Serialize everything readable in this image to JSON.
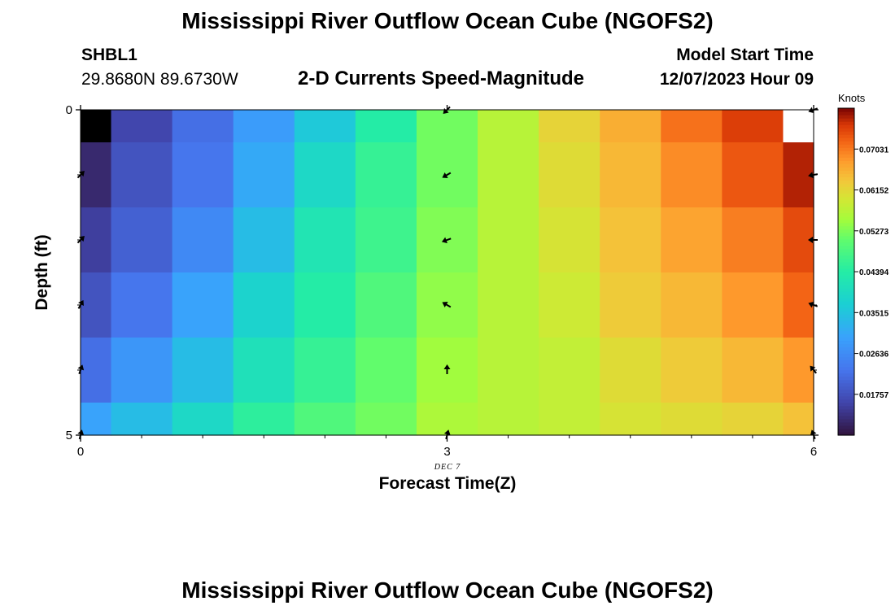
{
  "header": {
    "title": "Mississippi River Outflow Ocean Cube (NGOFS2)",
    "station": "SHBL1",
    "coords": "29.8680N  89.6730W",
    "subtitle": "2-D Currents Speed-Magnitude",
    "model_start_label": "Model Start Time",
    "model_start_value": "12/07/2023 Hour 09"
  },
  "footer": {
    "title": "Mississippi River Outflow Ocean Cube (NGOFS2)"
  },
  "chart_data": {
    "type": "heatmap",
    "xlabel": "Forecast Time(Z)",
    "ylabel": "Depth (ft)",
    "date_label": "DEC 7",
    "xlim": [
      0,
      6
    ],
    "ylim": [
      0,
      5
    ],
    "x_ticks": [
      "0",
      "3",
      "6"
    ],
    "y_ticks": [
      "0",
      "5"
    ],
    "colorbar": {
      "unit": "Knots",
      "ticks": [
        "0.01757",
        "0.02636",
        "0.03515",
        "0.04394",
        "0.05273",
        "0.06152",
        "0.07031"
      ],
      "min": 0.0088,
      "max": 0.0791
    },
    "x": [
      0,
      0.5,
      1,
      1.5,
      2,
      2.5,
      3,
      3.5,
      4,
      4.5,
      5,
      5.5,
      6
    ],
    "depths": [
      0,
      1,
      2,
      3,
      4,
      5
    ],
    "values": [
      [
        0.004,
        0.016,
        0.022,
        0.029,
        0.036,
        0.044,
        0.052,
        0.057,
        0.062,
        0.066,
        0.071,
        0.075,
        0.09
      ],
      [
        0.012,
        0.018,
        0.023,
        0.031,
        0.039,
        0.046,
        0.052,
        0.057,
        0.061,
        0.065,
        0.069,
        0.073,
        0.077
      ],
      [
        0.015,
        0.02,
        0.026,
        0.034,
        0.042,
        0.047,
        0.053,
        0.057,
        0.06,
        0.064,
        0.067,
        0.07,
        0.074
      ],
      [
        0.018,
        0.023,
        0.03,
        0.038,
        0.044,
        0.049,
        0.054,
        0.057,
        0.059,
        0.063,
        0.065,
        0.068,
        0.072
      ],
      [
        0.022,
        0.028,
        0.034,
        0.041,
        0.046,
        0.051,
        0.055,
        0.057,
        0.058,
        0.061,
        0.063,
        0.065,
        0.068
      ],
      [
        0.03,
        0.034,
        0.039,
        0.045,
        0.049,
        0.052,
        0.056,
        0.057,
        0.058,
        0.06,
        0.061,
        0.062,
        0.064
      ]
    ],
    "arrows": [
      {
        "x": 3,
        "depth": 0,
        "dir": 225
      },
      {
        "x": 6,
        "depth": 0,
        "dir": 250
      },
      {
        "x": 0,
        "depth": 1,
        "dir": 45
      },
      {
        "x": 3,
        "depth": 1,
        "dir": 240
      },
      {
        "x": 6,
        "depth": 1,
        "dir": 260
      },
      {
        "x": 0,
        "depth": 2,
        "dir": 45
      },
      {
        "x": 3,
        "depth": 2,
        "dir": 250
      },
      {
        "x": 6,
        "depth": 2,
        "dir": 270
      },
      {
        "x": 0,
        "depth": 3,
        "dir": 30
      },
      {
        "x": 3,
        "depth": 3,
        "dir": 300
      },
      {
        "x": 6,
        "depth": 3,
        "dir": 290
      },
      {
        "x": 0,
        "depth": 4,
        "dir": 20
      },
      {
        "x": 3,
        "depth": 4,
        "dir": 0
      },
      {
        "x": 6,
        "depth": 4,
        "dir": 320
      },
      {
        "x": 0,
        "depth": 5,
        "dir": 15
      },
      {
        "x": 3,
        "depth": 5,
        "dir": 15
      },
      {
        "x": 6,
        "depth": 5,
        "dir": 340
      }
    ],
    "missing_color": "#ffffff",
    "arrow_color": "#000000"
  }
}
